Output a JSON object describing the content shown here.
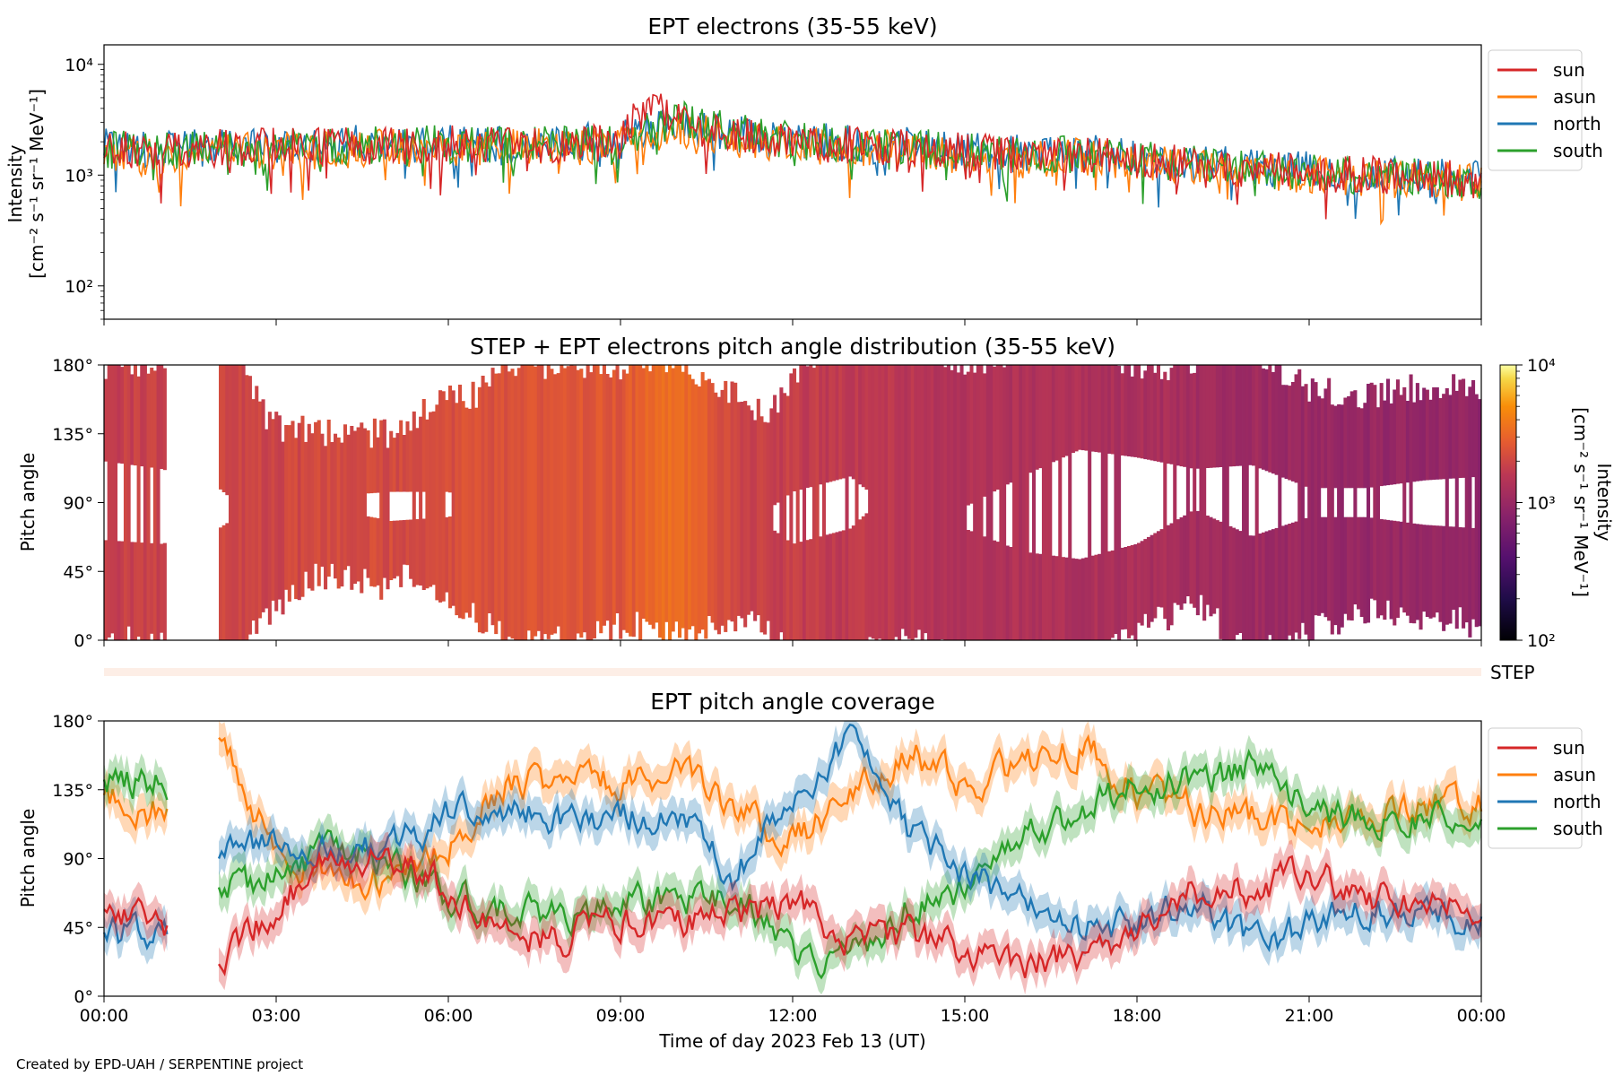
{
  "colors": {
    "sun": "#d62728",
    "asun": "#ff7f0e",
    "north": "#1f77b4",
    "south": "#2ca02c"
  },
  "footer": {
    "credit": "Created by EPD-UAH / SERPENTINE project"
  },
  "chart_data": [
    {
      "type": "line",
      "title": "EPT electrons (35-55 keV)",
      "ylabel_line1": "Intensity",
      "ylabel_line2": "[cm⁻² s⁻¹ sr⁻¹ MeV⁻¹]",
      "yscale": "log",
      "ylim": [
        50,
        15000
      ],
      "yticks": [
        "10²",
        "10³",
        "10⁴"
      ],
      "x": [
        0,
        1,
        2,
        3,
        4,
        5,
        6,
        7,
        8,
        9,
        9.5,
        10,
        11,
        12,
        13,
        14,
        15,
        16,
        17,
        18,
        19,
        20,
        21,
        22,
        23,
        24
      ],
      "series": [
        {
          "name": "sun",
          "values": [
            1700,
            1600,
            1750,
            1800,
            1850,
            1850,
            1900,
            1850,
            1900,
            2000,
            4500,
            3000,
            2300,
            2000,
            1900,
            1800,
            1600,
            1500,
            1550,
            1400,
            1250,
            1150,
            1050,
            1000,
            950,
            900
          ]
        },
        {
          "name": "asun",
          "values": [
            1500,
            1450,
            1600,
            1650,
            1700,
            1750,
            1800,
            1750,
            1800,
            1900,
            2400,
            2700,
            2100,
            1900,
            1800,
            1700,
            1500,
            1400,
            1450,
            1300,
            1150,
            1050,
            1000,
            950,
            900,
            850
          ]
        },
        {
          "name": "north",
          "values": [
            1800,
            1700,
            1800,
            1850,
            1900,
            1900,
            1950,
            1900,
            1950,
            2050,
            2500,
            2800,
            2300,
            2050,
            1950,
            1850,
            1650,
            1550,
            1600,
            1450,
            1300,
            1200,
            1100,
            1050,
            1000,
            950
          ]
        },
        {
          "name": "south",
          "values": [
            1700,
            1650,
            1750,
            1800,
            1850,
            1850,
            1900,
            1850,
            1900,
            2000,
            2600,
            3200,
            2400,
            2050,
            1950,
            1850,
            1600,
            1500,
            1550,
            1400,
            1250,
            1150,
            1050,
            1000,
            950,
            900
          ]
        }
      ],
      "legend_loc": "outside upper right"
    },
    {
      "type": "heatmap",
      "title": "STEP + EPT electrons pitch angle distribution (35-55 keV)",
      "ylabel": "Pitch angle",
      "yticks": [
        "0°",
        "45°",
        "90°",
        "135°",
        "180°"
      ],
      "ylim": [
        0,
        180
      ],
      "colorbar": {
        "label": "Intensity",
        "label_units": "[cm⁻² s⁻¹ sr⁻¹ MeV⁻¹]",
        "scale": "log",
        "range": [
          100,
          10000
        ],
        "ticks": [
          "10²",
          "10³",
          "10⁴"
        ],
        "colormap": "inferno"
      },
      "data_gap_hours": [
        1.1,
        2.0
      ],
      "log_intensity_by_hour": {
        "x": [
          0,
          3,
          6,
          9,
          10,
          11,
          12,
          15,
          18,
          21,
          24
        ],
        "values": [
          3.25,
          3.3,
          3.35,
          3.4,
          3.55,
          3.3,
          3.25,
          3.15,
          3.1,
          3.0,
          2.95
        ]
      },
      "step_strip_label": "STEP"
    },
    {
      "type": "line",
      "title": "EPT pitch angle coverage",
      "ylabel": "Pitch angle",
      "yticks": [
        "0°",
        "45°",
        "90°",
        "135°",
        "180°"
      ],
      "ylim": [
        0,
        180
      ],
      "x": [
        0,
        1,
        2,
        3,
        4,
        5,
        6,
        7,
        8,
        9,
        10,
        11,
        12,
        13,
        14,
        15,
        16,
        17,
        18,
        19,
        20,
        21,
        22,
        23,
        24
      ],
      "series": [
        {
          "name": "sun",
          "values": [
            55,
            50,
            20,
            60,
            90,
            95,
            70,
            40,
            40,
            50,
            45,
            55,
            60,
            40,
            40,
            30,
            20,
            25,
            45,
            70,
            70,
            80,
            65,
            60,
            60
          ]
        },
        {
          "name": "asun",
          "values": [
            130,
            120,
            165,
            95,
            80,
            75,
            100,
            140,
            140,
            140,
            145,
            120,
            100,
            130,
            160,
            140,
            150,
            165,
            135,
            120,
            115,
            110,
            120,
            125,
            125
          ]
        },
        {
          "name": "north",
          "values": [
            40,
            40,
            90,
            100,
            95,
            95,
            120,
            120,
            115,
            120,
            115,
            80,
            130,
            170,
            110,
            80,
            60,
            45,
            45,
            65,
            30,
            45,
            60,
            55,
            50
          ]
        },
        {
          "name": "south",
          "values": [
            140,
            140,
            70,
            75,
            95,
            85,
            65,
            55,
            50,
            60,
            60,
            65,
            30,
            20,
            60,
            70,
            100,
            120,
            140,
            140,
            150,
            125,
            115,
            120,
            125
          ]
        }
      ],
      "xlabel": "Time of day 2023 Feb 13 (UT)",
      "xticks": [
        "00:00",
        "03:00",
        "06:00",
        "09:00",
        "12:00",
        "15:00",
        "18:00",
        "21:00",
        "00:00"
      ],
      "legend_loc": "outside upper right"
    }
  ]
}
